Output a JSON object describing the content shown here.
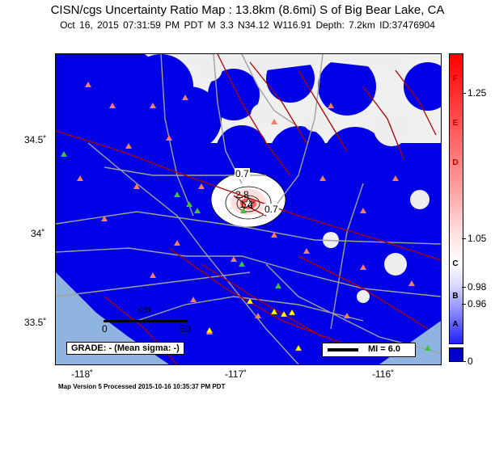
{
  "header": {
    "title": "CISN/cgs Uncertainty Ratio Map : 13.8km (8.6mi) S of Big Bear Lake, CA",
    "subtitle": "Oct 16, 2015 07:31:59 PM PDT   M 3.3   N34.12 W116.91   Depth: 7.2km   ID:37476904"
  },
  "axes": {
    "lat_labels": [
      "34.5˚",
      "34˚",
      "33.5˚"
    ],
    "lon_labels": [
      "-118˚",
      "-117˚",
      "-116˚"
    ]
  },
  "map": {
    "contour_labels": [
      "0.7",
      "2.8",
      "1.4",
      "0.7"
    ],
    "scale_bar": {
      "unit": "km",
      "start": "0",
      "end": "50"
    },
    "grade_text": "GRADE: - (Mean sigma: -)",
    "mi_legend": "MI = 6.0",
    "colors": {
      "uncertainty_blue": "#0000e6",
      "water": "#8fb4e0",
      "roads": "#a0a0a0",
      "faults": "#b00000",
      "station_red": "#f08060",
      "station_green": "#40c040",
      "station_yellow": "#ffff00"
    }
  },
  "colorbar": {
    "letters": [
      "F",
      "E",
      "D",
      "C",
      "B",
      "A"
    ],
    "values": [
      "1.25",
      "1.05",
      "0.98",
      "0.96",
      "0"
    ]
  },
  "footer": "Map Version 5 Processed 2015-10-16 10:35:37 PM PDT"
}
